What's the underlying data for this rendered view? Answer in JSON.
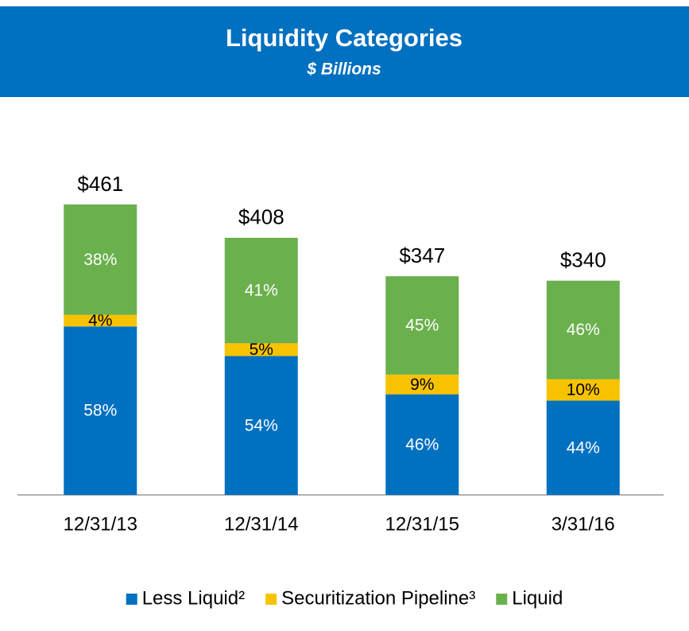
{
  "chart_data": {
    "type": "bar",
    "stacked": true,
    "title": "Liquidity Categories",
    "subtitle": "$ Billions",
    "categories": [
      "12/31/13",
      "12/31/14",
      "12/31/15",
      "3/31/16"
    ],
    "totals": {
      "values": [
        461,
        408,
        347,
        340
      ],
      "value_labels": [
        "$461",
        "$408",
        "$347",
        "$340"
      ]
    },
    "series": [
      {
        "name": "Less Liquid²",
        "color": "#0070c0",
        "label_color": "#ffffff",
        "values": [
          58,
          54,
          46,
          44
        ],
        "value_labels": [
          "58%",
          "54%",
          "46%",
          "44%"
        ]
      },
      {
        "name": "Securitization Pipeline³",
        "color": "#f7c300",
        "label_color": "#000000",
        "values": [
          4,
          5,
          9,
          10
        ],
        "value_labels": [
          "4%",
          "5%",
          "9%",
          "10%"
        ]
      },
      {
        "name": "Liquid",
        "color": "#6ab04c",
        "label_color": "#ffffff",
        "values": [
          38,
          41,
          45,
          46
        ],
        "value_labels": [
          "38%",
          "41%",
          "45%",
          "46%"
        ]
      }
    ],
    "legend": "bottom"
  }
}
